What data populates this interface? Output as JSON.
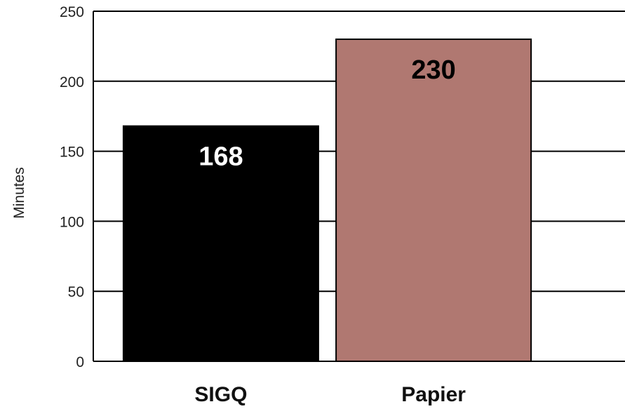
{
  "chart_data": {
    "type": "bar",
    "title": "",
    "xlabel": "",
    "ylabel": "Minutes",
    "ylim": [
      0,
      250
    ],
    "yticks": [
      0,
      50,
      100,
      150,
      200,
      250
    ],
    "grid": true,
    "categories": [
      "SIGQ",
      "Papier"
    ],
    "values": [
      168,
      230
    ],
    "colors": [
      "#000000",
      "#b07871"
    ],
    "data_label_colors": [
      "#ffffff",
      "#000000"
    ]
  }
}
